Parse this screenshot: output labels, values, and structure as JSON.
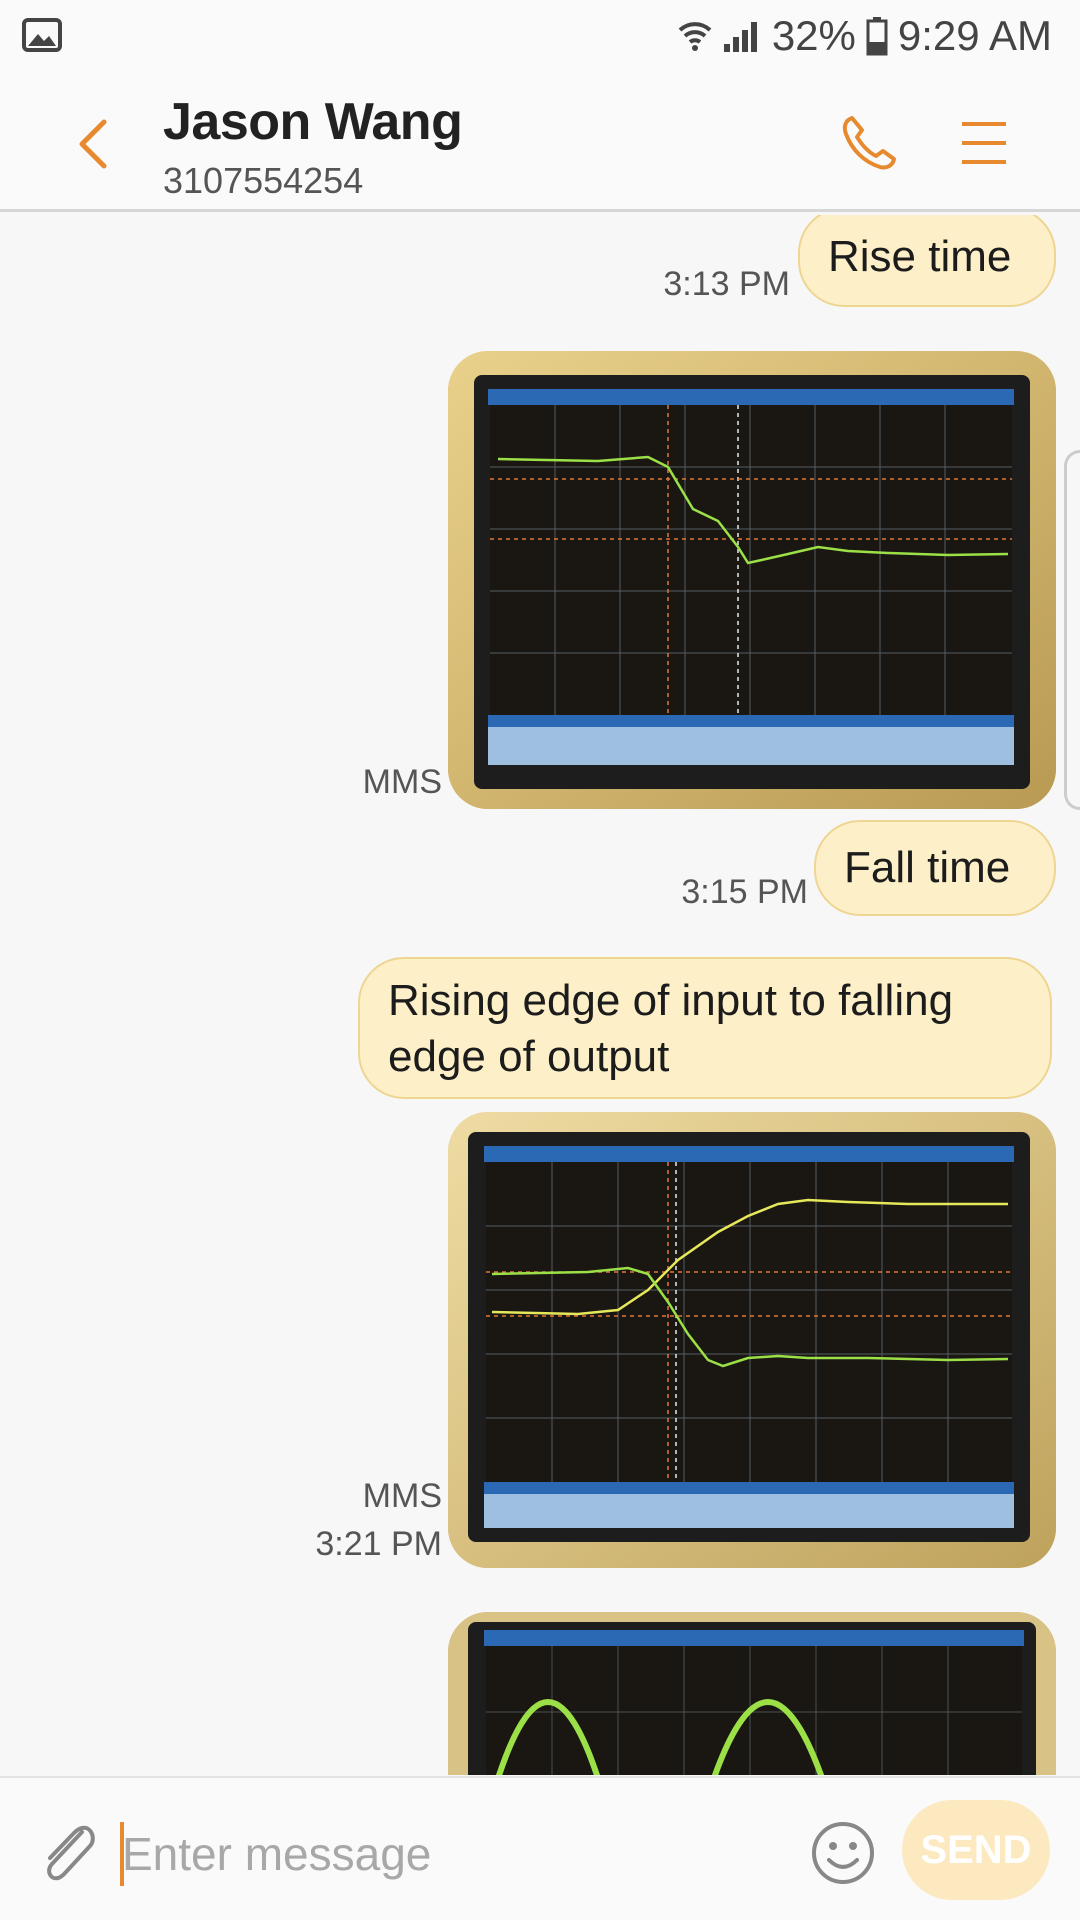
{
  "status_bar": {
    "battery": "32%",
    "time": "9:29 AM",
    "icons": [
      "gallery-notification-icon",
      "wifi-icon",
      "signal-icon",
      "battery-icon"
    ]
  },
  "header": {
    "contact_name": "Jason Wang",
    "contact_number": "3107554254",
    "icons": [
      "back-icon",
      "phone-icon",
      "menu-icon"
    ]
  },
  "messages": [
    {
      "type": "text",
      "text": "Rise time",
      "time": "3:13 PM"
    },
    {
      "type": "mms",
      "label": "MMS"
    },
    {
      "type": "text",
      "text": "Fall time",
      "time": "3:15 PM"
    },
    {
      "type": "text",
      "text_line1": "Rising edge of input to falling",
      "text_line2": "edge of output"
    },
    {
      "type": "mms",
      "label": "MMS",
      "time": "3:21 PM"
    },
    {
      "type": "mms"
    }
  ],
  "composer": {
    "placeholder": "Enter message",
    "send_label": "SEND",
    "icons": [
      "paperclip-icon",
      "emoji-icon"
    ]
  },
  "colors": {
    "accent": "#e78a2f",
    "bubble": "#fdefc8",
    "bubble_border": "#eed592",
    "send_disabled": "#fde9c0"
  }
}
